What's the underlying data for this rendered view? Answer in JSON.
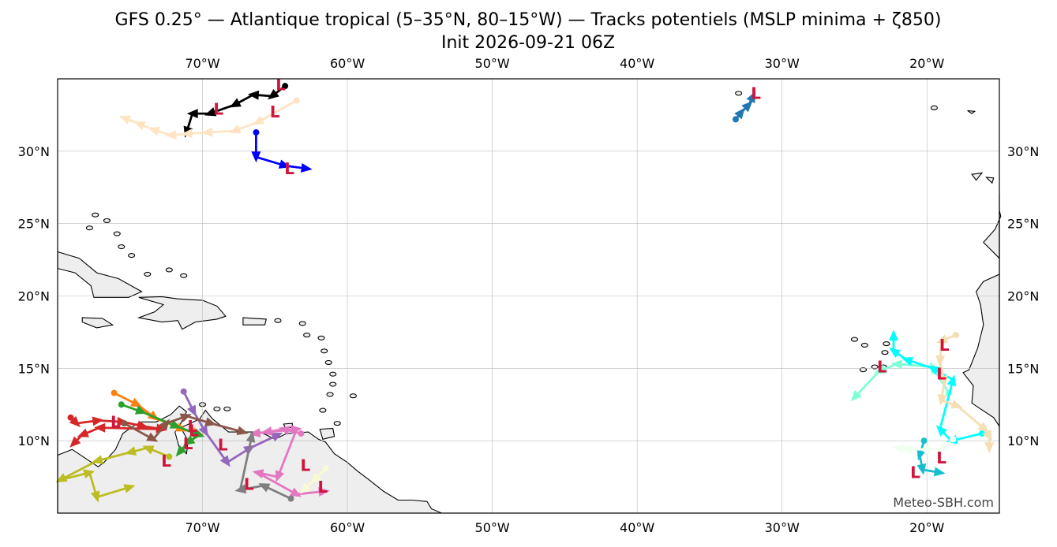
{
  "title": {
    "line1": "GFS 0.25° — Atlantique tropical (5–35°N, 80–15°W) — Tracks potentiels (MSLP minima + ζ850)",
    "line2": "Init 2026-09-21 06Z"
  },
  "credit": "Meteo-SBH.com",
  "map": {
    "projection": "PlateCarree",
    "extent": {
      "lon_min": -80,
      "lon_max": -15,
      "lat_min": 5,
      "lat_max": 35
    },
    "gridlines": true,
    "land_color": "#eeeeee",
    "ocean_color": "#ffffff",
    "lon_ticks": [
      {
        "value": -70,
        "label": "70°W"
      },
      {
        "value": -60,
        "label": "60°W"
      },
      {
        "value": -50,
        "label": "50°W"
      },
      {
        "value": -40,
        "label": "40°W"
      },
      {
        "value": -30,
        "label": "30°W"
      },
      {
        "value": -20,
        "label": "20°W"
      }
    ],
    "lat_ticks": [
      {
        "value": 10,
        "label": "10°N"
      },
      {
        "value": 15,
        "label": "15°N"
      },
      {
        "value": 20,
        "label": "20°N"
      },
      {
        "value": 25,
        "label": "25°N"
      },
      {
        "value": 30,
        "label": "30°N"
      }
    ]
  },
  "low_marker_label": "L",
  "tracks": [
    {
      "color": "#000000",
      "points": [
        [
          -64.3,
          34.5
        ],
        [
          -65.2,
          33.8
        ],
        [
          -66.5,
          33.9
        ],
        [
          -67.8,
          33.2
        ],
        [
          -69.5,
          32.6
        ],
        [
          -70.7,
          32.6
        ],
        [
          -71.1,
          31.3
        ]
      ],
      "lows": [
        [
          -64.6,
          34.6
        ],
        [
          -68.9,
          32.9
        ]
      ]
    },
    {
      "color": "#ffe4c4",
      "points": [
        [
          -63.5,
          33.5
        ],
        [
          -66.2,
          32.0
        ],
        [
          -67.8,
          31.4
        ],
        [
          -69.7,
          31.3
        ],
        [
          -71.1,
          31.2
        ],
        [
          -72.2,
          31.1
        ],
        [
          -73.4,
          31.5
        ],
        [
          -74.4,
          31.9
        ],
        [
          -75.4,
          32.3
        ]
      ],
      "lows": [
        [
          -65.0,
          32.7
        ]
      ]
    },
    {
      "color": "#0000ff",
      "points": [
        [
          -66.3,
          31.3
        ],
        [
          -66.3,
          29.6
        ],
        [
          -64.3,
          29.0
        ],
        [
          -62.8,
          28.8
        ]
      ],
      "lows": [
        [
          -64.0,
          28.8
        ]
      ]
    },
    {
      "color": "#1f77b4",
      "points": [
        [
          -33.2,
          32.2
        ],
        [
          -32.8,
          32.7
        ],
        [
          -32.3,
          33.2
        ],
        [
          -32.0,
          33.8
        ]
      ],
      "lows": [
        [
          -31.8,
          34.0
        ]
      ]
    },
    {
      "color": "#ff7f0e",
      "points": [
        [
          -76.1,
          13.3
        ],
        [
          -74.5,
          12.5
        ],
        [
          -73.3,
          11.6
        ],
        [
          -71.4,
          10.8
        ],
        [
          -70.3,
          10.5
        ]
      ],
      "lows": [
        [
          -70.6,
          10.7
        ]
      ]
    },
    {
      "color": "#2ca02c",
      "points": [
        [
          -75.6,
          12.5
        ],
        [
          -74.2,
          12.0
        ],
        [
          -71.8,
          11.0
        ],
        [
          -70.2,
          10.4
        ],
        [
          -71.0,
          9.9
        ],
        [
          -71.6,
          9.2
        ]
      ],
      "lows": [
        [
          -71.0,
          9.8
        ]
      ]
    },
    {
      "color": "#d62728",
      "points": [
        [
          -79.1,
          11.6
        ],
        [
          -78.7,
          11.2
        ],
        [
          -77.2,
          11.4
        ],
        [
          -75.5,
          11.3
        ],
        [
          -74.1,
          11.0
        ],
        [
          -72.8,
          10.8
        ],
        [
          -77.1,
          10.9
        ],
        [
          -78.3,
          10.4
        ],
        [
          -78.9,
          9.8
        ]
      ],
      "lows": [
        [
          -76.0,
          11.3
        ]
      ]
    },
    {
      "color": "#9467bd",
      "points": [
        [
          -71.3,
          13.4
        ],
        [
          -70.6,
          12.0
        ],
        [
          -69.8,
          10.6
        ],
        [
          -68.3,
          8.5
        ],
        [
          -66.7,
          9.5
        ],
        [
          -64.8,
          10.4
        ]
      ],
      "lows": [
        [
          -68.6,
          9.7
        ]
      ]
    },
    {
      "color": "#8c564b",
      "points": [
        [
          -75.4,
          11.2
        ],
        [
          -73.4,
          10.1
        ],
        [
          -72.5,
          11.2
        ],
        [
          -71.1,
          11.7
        ],
        [
          -69.4,
          11.2
        ],
        [
          -67.2,
          10.6
        ]
      ],
      "lows": [
        [
          -70.7,
          11.0
        ]
      ]
    },
    {
      "color": "#e377c2",
      "points": [
        [
          -63.2,
          10.5
        ],
        [
          -64.4,
          10.8
        ],
        [
          -65.6,
          10.6
        ],
        [
          -66.4,
          10.5
        ],
        [
          -63.5,
          10.8
        ],
        [
          -64.8,
          7.5
        ],
        [
          -66.2,
          7.8
        ],
        [
          -63.5,
          6.3
        ],
        [
          -61.6,
          6.5
        ]
      ],
      "lows": [
        [
          -62.9,
          8.3
        ]
      ]
    },
    {
      "color": "#7f7f7f",
      "points": [
        [
          -63.9,
          6.0
        ],
        [
          -65.8,
          6.9
        ],
        [
          -67.4,
          6.6
        ],
        [
          -66.6,
          10.3
        ]
      ],
      "lows": [
        [
          -66.8,
          7.0
        ]
      ]
    },
    {
      "color": "#bcbd22",
      "points": [
        [
          -72.3,
          8.9
        ],
        [
          -73.8,
          9.5
        ],
        [
          -75.0,
          9.2
        ],
        [
          -77.3,
          8.6
        ],
        [
          -79.8,
          7.3
        ],
        [
          -77.8,
          7.8
        ],
        [
          -77.3,
          6.1
        ],
        [
          -75.0,
          6.8
        ]
      ],
      "lows": [
        [
          -72.5,
          8.6
        ]
      ]
    },
    {
      "color": "#fafad2",
      "points": [
        [
          -61.5,
          8.1
        ],
        [
          -62.3,
          7.3
        ],
        [
          -63.0,
          6.6
        ]
      ],
      "lows": [
        [
          -61.7,
          6.8
        ]
      ]
    },
    {
      "color": "#7fffd4",
      "points": [
        [
          -18.5,
          13.3
        ],
        [
          -19.6,
          15.1
        ],
        [
          -22.1,
          15.3
        ],
        [
          -23.3,
          14.8
        ],
        [
          -25.0,
          13.0
        ]
      ],
      "lows": [
        [
          -23.1,
          15.1
        ]
      ]
    },
    {
      "color": "#00ffff",
      "points": [
        [
          -16.2,
          10.5
        ],
        [
          -18.3,
          10.0
        ],
        [
          -19.1,
          10.8
        ],
        [
          -18.2,
          14.2
        ],
        [
          -19.6,
          15.0
        ],
        [
          -21.4,
          15.6
        ],
        [
          -22.3,
          16.2
        ],
        [
          -22.3,
          17.3
        ]
      ],
      "lows": [
        [
          -19.0,
          14.6
        ]
      ]
    },
    {
      "color": "#17becf",
      "points": [
        [
          -20.2,
          10.0
        ],
        [
          -20.5,
          9.0
        ],
        [
          -20.3,
          8.0
        ],
        [
          -19.1,
          7.8
        ]
      ],
      "lows": [
        [
          -20.8,
          7.8
        ]
      ]
    },
    {
      "color": "#f5deb3",
      "points": [
        [
          -18.0,
          17.3
        ],
        [
          -19.0,
          16.9
        ],
        [
          -19.1,
          15.5
        ],
        [
          -18.8,
          14.1
        ],
        [
          -19.0,
          12.8
        ],
        [
          -17.9,
          12.4
        ],
        [
          -16.0,
          10.8
        ],
        [
          -15.7,
          10.3
        ],
        [
          -15.7,
          9.5
        ]
      ],
      "lows": [
        [
          -18.8,
          16.6
        ]
      ]
    },
    {
      "color": "#f0fff0",
      "points": [
        [
          -18.2,
          10.1
        ],
        [
          -19.0,
          9.4
        ],
        [
          -20.2,
          9.4
        ],
        [
          -21.4,
          9.4
        ],
        [
          -22.0,
          9.5
        ]
      ],
      "lows": [
        [
          -19.0,
          8.8
        ]
      ]
    }
  ]
}
